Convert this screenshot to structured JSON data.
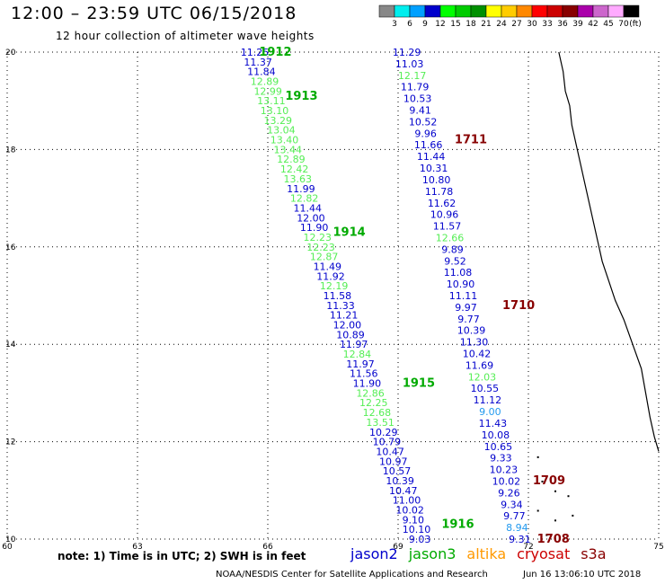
{
  "header": {
    "title": "12:00 – 23:59 UTC 06/15/2018",
    "subtitle": "12 hour collection of altimeter wave heights"
  },
  "legend": {
    "unit": "(ft)",
    "bins": [
      {
        "label": "3",
        "color": "#888888"
      },
      {
        "label": "6",
        "color": "#00eeee"
      },
      {
        "label": "9",
        "color": "#00a0ff"
      },
      {
        "label": "12",
        "color": "#0000cc"
      },
      {
        "label": "15",
        "color": "#00ff00"
      },
      {
        "label": "18",
        "color": "#00cc00"
      },
      {
        "label": "21",
        "color": "#009000"
      },
      {
        "label": "24",
        "color": "#ffff00"
      },
      {
        "label": "27",
        "color": "#ffcc00"
      },
      {
        "label": "30",
        "color": "#ff8800"
      },
      {
        "label": "33",
        "color": "#ff0000"
      },
      {
        "label": "36",
        "color": "#cc0000"
      },
      {
        "label": "39",
        "color": "#880000"
      },
      {
        "label": "42",
        "color": "#aa00aa"
      },
      {
        "label": "45",
        "color": "#cc66cc"
      },
      {
        "label": "70",
        "color": "#ffaaff"
      },
      {
        "label": "",
        "color": "#000000"
      }
    ]
  },
  "axes": {
    "lon_ticks": [
      "60",
      "63",
      "66",
      "69",
      "72",
      "75"
    ],
    "lat_ticks": [
      "20",
      "18",
      "16",
      "14",
      "12",
      "10"
    ],
    "lon_range": [
      60,
      75
    ],
    "lat_range": [
      10,
      20
    ]
  },
  "colors": {
    "jason2": "#0000cc",
    "jason3": "#00aa00",
    "altika": "#ff9900",
    "cryosat": "#cc0000",
    "s3a": "#880000",
    "light_green": "#55ee55",
    "cyan_blue": "#2299ee",
    "coast": "#000000"
  },
  "tracks": [
    {
      "name": "track-jason3-west",
      "labels": [
        {
          "id": "1912",
          "lat": 20.0,
          "lon": 65.8,
          "color": "jason3"
        },
        {
          "id": "1913",
          "lat": 19.1,
          "lon": 66.4,
          "color": "jason3"
        },
        {
          "id": "1914",
          "lat": 16.3,
          "lon": 67.5,
          "color": "jason3"
        },
        {
          "id": "1915",
          "lat": 13.2,
          "lon": 69.1,
          "color": "jason3"
        },
        {
          "id": "1916",
          "lat": 10.3,
          "lon": 70.0,
          "color": "jason3"
        }
      ],
      "points": [
        {
          "v": "11.25",
          "c": "jason2"
        },
        {
          "v": "11.37",
          "c": "jason2"
        },
        {
          "v": "11.84",
          "c": "jason2"
        },
        {
          "v": "12.89",
          "c": "light_green"
        },
        {
          "v": "12.99",
          "c": "light_green"
        },
        {
          "v": "13.11",
          "c": "light_green"
        },
        {
          "v": "13.10",
          "c": "light_green"
        },
        {
          "v": "13.29",
          "c": "light_green"
        },
        {
          "v": "13.04",
          "c": "light_green"
        },
        {
          "v": "13.40",
          "c": "light_green"
        },
        {
          "v": "13.44",
          "c": "light_green"
        },
        {
          "v": "12.89",
          "c": "light_green"
        },
        {
          "v": "12.42",
          "c": "light_green"
        },
        {
          "v": "13.63",
          "c": "light_green"
        },
        {
          "v": "11.99",
          "c": "jason2"
        },
        {
          "v": "12.82",
          "c": "light_green"
        },
        {
          "v": "11.44",
          "c": "jason2"
        },
        {
          "v": "12.00",
          "c": "jason2"
        },
        {
          "v": "11.90",
          "c": "jason2"
        },
        {
          "v": "12.23",
          "c": "light_green"
        },
        {
          "v": "12.23",
          "c": "light_green"
        },
        {
          "v": "12.87",
          "c": "light_green"
        },
        {
          "v": "11.49",
          "c": "jason2"
        },
        {
          "v": "11.92",
          "c": "jason2"
        },
        {
          "v": "12.19",
          "c": "light_green"
        },
        {
          "v": "11.58",
          "c": "jason2"
        },
        {
          "v": "11.33",
          "c": "jason2"
        },
        {
          "v": "11.21",
          "c": "jason2"
        },
        {
          "v": "12.00",
          "c": "jason2"
        },
        {
          "v": "10.89",
          "c": "jason2"
        },
        {
          "v": "11.97",
          "c": "jason2"
        },
        {
          "v": "12.84",
          "c": "light_green"
        },
        {
          "v": "11.97",
          "c": "jason2"
        },
        {
          "v": "11.56",
          "c": "jason2"
        },
        {
          "v": "11.90",
          "c": "jason2"
        },
        {
          "v": "12.86",
          "c": "light_green"
        },
        {
          "v": "12.25",
          "c": "light_green"
        },
        {
          "v": "12.68",
          "c": "light_green"
        },
        {
          "v": "13.51",
          "c": "light_green"
        },
        {
          "v": "10.29",
          "c": "jason2"
        },
        {
          "v": "10.79",
          "c": "jason2"
        },
        {
          "v": "10.47",
          "c": "jason2"
        },
        {
          "v": "10.97",
          "c": "jason2"
        },
        {
          "v": "10.57",
          "c": "jason2"
        },
        {
          "v": "10.39",
          "c": "jason2"
        },
        {
          "v": "10.47",
          "c": "jason2"
        },
        {
          "v": "11.00",
          "c": "jason2"
        },
        {
          "v": "10.02",
          "c": "jason2"
        },
        {
          "v": "9.10",
          "c": "jason2"
        },
        {
          "v": "10.10",
          "c": "jason2"
        },
        {
          "v": "9.03",
          "c": "jason2"
        }
      ]
    },
    {
      "name": "track-s3a-east",
      "labels": [
        {
          "id": "1711",
          "lat": 18.2,
          "lon": 70.3,
          "color": "s3a"
        },
        {
          "id": "1710",
          "lat": 14.8,
          "lon": 71.4,
          "color": "s3a"
        },
        {
          "id": "1709",
          "lat": 11.2,
          "lon": 72.1,
          "color": "s3a"
        },
        {
          "id": "1708",
          "lat": 10.0,
          "lon": 72.2,
          "color": "s3a"
        }
      ],
      "points": [
        {
          "v": "11.29",
          "c": "jason2"
        },
        {
          "v": "11.03",
          "c": "jason2"
        },
        {
          "v": "12.17",
          "c": "light_green"
        },
        {
          "v": "11.79",
          "c": "jason2"
        },
        {
          "v": "10.53",
          "c": "jason2"
        },
        {
          "v": "9.41",
          "c": "jason2"
        },
        {
          "v": "10.52",
          "c": "jason2"
        },
        {
          "v": "9.96",
          "c": "jason2"
        },
        {
          "v": "11.66",
          "c": "jason2"
        },
        {
          "v": "11.44",
          "c": "jason2"
        },
        {
          "v": "10.31",
          "c": "jason2"
        },
        {
          "v": "10.80",
          "c": "jason2"
        },
        {
          "v": "11.78",
          "c": "jason2"
        },
        {
          "v": "11.62",
          "c": "jason2"
        },
        {
          "v": "10.96",
          "c": "jason2"
        },
        {
          "v": "11.57",
          "c": "jason2"
        },
        {
          "v": "12.66",
          "c": "light_green"
        },
        {
          "v": "9.89",
          "c": "jason2"
        },
        {
          "v": "9.52",
          "c": "jason2"
        },
        {
          "v": "11.08",
          "c": "jason2"
        },
        {
          "v": "10.90",
          "c": "jason2"
        },
        {
          "v": "11.11",
          "c": "jason2"
        },
        {
          "v": "9.97",
          "c": "jason2"
        },
        {
          "v": "9.77",
          "c": "jason2"
        },
        {
          "v": "10.39",
          "c": "jason2"
        },
        {
          "v": "11.30",
          "c": "jason2"
        },
        {
          "v": "10.42",
          "c": "jason2"
        },
        {
          "v": "11.69",
          "c": "jason2"
        },
        {
          "v": "12.03",
          "c": "light_green"
        },
        {
          "v": "10.55",
          "c": "jason2"
        },
        {
          "v": "11.12",
          "c": "jason2"
        },
        {
          "v": "9.00",
          "c": "cyan_blue"
        },
        {
          "v": "11.43",
          "c": "jason2"
        },
        {
          "v": "10.08",
          "c": "jason2"
        },
        {
          "v": "10.65",
          "c": "jason2"
        },
        {
          "v": "9.33",
          "c": "jason2"
        },
        {
          "v": "10.23",
          "c": "jason2"
        },
        {
          "v": "10.02",
          "c": "jason2"
        },
        {
          "v": "9.26",
          "c": "jason2"
        },
        {
          "v": "9.34",
          "c": "jason2"
        },
        {
          "v": "9.77",
          "c": "jason2"
        },
        {
          "v": "8.94",
          "c": "cyan_blue"
        },
        {
          "v": "9.31",
          "c": "jason2"
        }
      ]
    }
  ],
  "footer": {
    "note": "note:  1) Time is in UTC;  2) SWH is in feet",
    "missions": [
      {
        "label": "jason2",
        "color": "jason2"
      },
      {
        "label": "jason3",
        "color": "jason3"
      },
      {
        "label": "altika",
        "color": "altika"
      },
      {
        "label": "cryosat",
        "color": "cryosat"
      },
      {
        "label": "s3a",
        "color": "s3a"
      }
    ],
    "credit": "NOAA/NESDIS Center for Satellite Applications and Research",
    "timestamp": "Jun 16 13:06:10 UTC 2018"
  }
}
